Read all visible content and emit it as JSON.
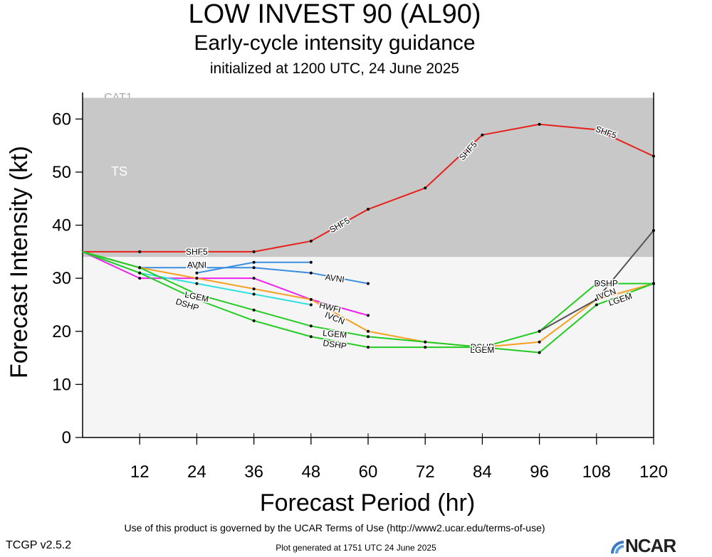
{
  "header": {
    "title": "LOW INVEST 90 (AL90)",
    "subtitle": "Early-cycle intensity guidance",
    "init": "initialized at 1200 UTC, 24 June 2025"
  },
  "footer": {
    "terms": "Use of this product is governed by the UCAR Terms of Use (http://www2.ucar.edu/terms-of-use)",
    "version": "TCGP v2.5.2",
    "generated": "Plot generated at 1751 UTC   24 June 2025",
    "logo": "NCAR"
  },
  "chart_data": {
    "type": "line",
    "title": "LOW INVEST 90 (AL90)",
    "xlabel": "Forecast Period (hr)",
    "ylabel": "Forecast Intensity (kt)",
    "xlim": [
      0,
      120
    ],
    "ylim": [
      0,
      65
    ],
    "xticks": [
      12,
      24,
      36,
      48,
      60,
      72,
      84,
      96,
      108,
      120
    ],
    "yticks": [
      0,
      10,
      20,
      30,
      40,
      50,
      60
    ],
    "bands": [
      {
        "label": "TS",
        "from": 34,
        "to": 64,
        "color": "#c8c8c8"
      },
      {
        "label": "",
        "from": 0,
        "to": 34,
        "color": "#f5f5f5"
      }
    ],
    "partial_label": "CAT1",
    "series": [
      {
        "name": "SHF5",
        "color": "#e8201a",
        "x": [
          0,
          12,
          24,
          36,
          48,
          60,
          72,
          84,
          96,
          108,
          120
        ],
        "y": [
          35,
          35,
          35,
          35,
          37,
          43,
          47,
          57,
          59,
          58,
          53
        ]
      },
      {
        "name": "AVNI",
        "color": "#3b8de0",
        "x": [
          0,
          12,
          24,
          36,
          48,
          60
        ],
        "y": [
          35,
          32,
          32,
          32,
          31,
          29
        ]
      },
      {
        "name": "",
        "color": "#3b8de0",
        "x": [
          24,
          36,
          48
        ],
        "y": [
          31,
          33,
          33
        ]
      },
      {
        "name": "HWFI",
        "color": "#ee22ee",
        "x": [
          0,
          12,
          24,
          36,
          48,
          60
        ],
        "y": [
          35,
          30,
          30,
          30,
          26,
          23
        ]
      },
      {
        "name": "IVCN",
        "color": "#f5a020",
        "x": [
          0,
          12,
          24,
          36,
          48,
          60,
          72,
          84,
          96,
          108,
          120
        ],
        "y": [
          35,
          32,
          30,
          28,
          26,
          20,
          18,
          17,
          18,
          26,
          29
        ]
      },
      {
        "name": "",
        "color": "#33e0e0",
        "x": [
          0,
          12,
          24,
          36,
          48
        ],
        "y": [
          35,
          31,
          29,
          27,
          25
        ]
      },
      {
        "name": "LGEM",
        "color": "#22cc22",
        "x": [
          0,
          12,
          24,
          36,
          48,
          60,
          72,
          84,
          96,
          108,
          120
        ],
        "y": [
          35,
          32,
          27,
          24,
          21,
          19,
          18,
          17,
          16,
          25,
          29
        ]
      },
      {
        "name": "DSHP",
        "color": "#22cc22",
        "x": [
          0,
          12,
          24,
          36,
          48,
          60,
          72,
          84,
          96,
          108,
          120
        ],
        "y": [
          35,
          31,
          26,
          22,
          19,
          17,
          17,
          17,
          20,
          29,
          29
        ]
      },
      {
        "name": "",
        "color": "#555555",
        "x": [
          96,
          108,
          120
        ],
        "y": [
          20,
          26,
          39
        ]
      }
    ],
    "labels": [
      {
        "text": "SHF5",
        "x": 24,
        "y": 35,
        "rot": 0
      },
      {
        "text": "SHF5",
        "x": 54,
        "y": 40,
        "rot": -30
      },
      {
        "text": "SHF5",
        "x": 81,
        "y": 54,
        "rot": -48
      },
      {
        "text": "SHF5",
        "x": 110,
        "y": 57.5,
        "rot": 20
      },
      {
        "text": "AVNI",
        "x": 24,
        "y": 32.5,
        "rot": 0
      },
      {
        "text": "AVNI",
        "x": 53,
        "y": 30,
        "rot": 8
      },
      {
        "text": "HWFI",
        "x": 52,
        "y": 24.5,
        "rot": 14
      },
      {
        "text": "IVCN",
        "x": 53,
        "y": 22.5,
        "rot": 22
      },
      {
        "text": "LGEM",
        "x": 53,
        "y": 19.5,
        "rot": 5
      },
      {
        "text": "DSHP",
        "x": 53,
        "y": 17.5,
        "rot": 8
      },
      {
        "text": "LGEM",
        "x": 24,
        "y": 26.5,
        "rot": 12
      },
      {
        "text": "DSHP",
        "x": 22,
        "y": 25,
        "rot": 18
      },
      {
        "text": "DSHP",
        "x": 84,
        "y": 17,
        "rot": 0
      },
      {
        "text": "LGEM",
        "x": 84,
        "y": 16.5,
        "rot": 0
      },
      {
        "text": "DSHP",
        "x": 110,
        "y": 29,
        "rot": 0
      },
      {
        "text": "IVCN",
        "x": 110,
        "y": 27,
        "rot": -20
      },
      {
        "text": "LGEM",
        "x": 113,
        "y": 26,
        "rot": -18
      }
    ]
  }
}
